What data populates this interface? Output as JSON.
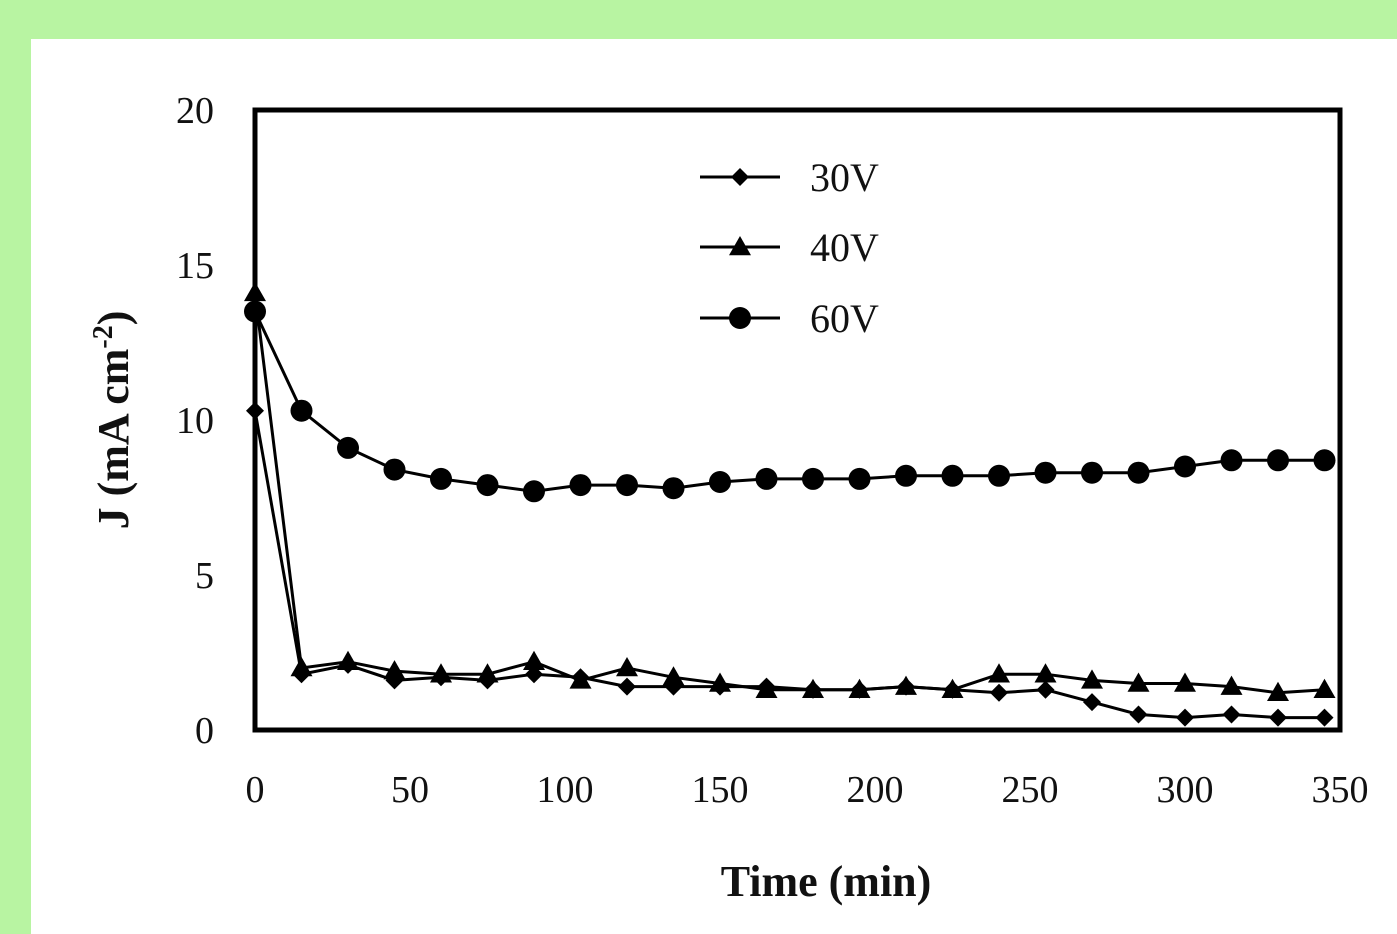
{
  "chart_data": {
    "type": "line",
    "xlabel": "Time (min)",
    "ylabel_base": "J (mA cm",
    "ylabel_sup": "-2",
    "ylabel_end": ")",
    "xlim": [
      0,
      350
    ],
    "ylim": [
      0,
      20
    ],
    "xticks": [
      0,
      50,
      100,
      150,
      200,
      250,
      300,
      350
    ],
    "yticks": [
      0,
      5,
      10,
      15,
      20
    ],
    "grid": false,
    "legend_position": "top-center",
    "x": [
      0,
      15,
      30,
      45,
      60,
      75,
      90,
      105,
      120,
      135,
      150,
      165,
      180,
      195,
      210,
      225,
      240,
      255,
      270,
      285,
      300,
      315,
      330,
      345
    ],
    "series": [
      {
        "name": "30V",
        "marker": "diamond",
        "values": [
          10.3,
          1.8,
          2.1,
          1.6,
          1.7,
          1.6,
          1.8,
          1.7,
          1.4,
          1.4,
          1.4,
          1.4,
          1.3,
          1.3,
          1.4,
          1.3,
          1.2,
          1.3,
          0.9,
          0.5,
          0.4,
          0.5,
          0.4,
          0.4
        ]
      },
      {
        "name": "40V",
        "marker": "triangle",
        "values": [
          14.1,
          2.0,
          2.2,
          1.9,
          1.8,
          1.8,
          2.2,
          1.6,
          2.0,
          1.7,
          1.5,
          1.3,
          1.3,
          1.3,
          1.4,
          1.3,
          1.8,
          1.8,
          1.6,
          1.5,
          1.5,
          1.4,
          1.2,
          1.3
        ]
      },
      {
        "name": "60V",
        "marker": "circle",
        "values": [
          13.5,
          10.3,
          9.1,
          8.4,
          8.1,
          7.9,
          7.7,
          7.9,
          7.9,
          7.8,
          8.0,
          8.1,
          8.1,
          8.1,
          8.2,
          8.2,
          8.2,
          8.3,
          8.3,
          8.3,
          8.5,
          8.7,
          8.7,
          8.7
        ]
      }
    ]
  }
}
